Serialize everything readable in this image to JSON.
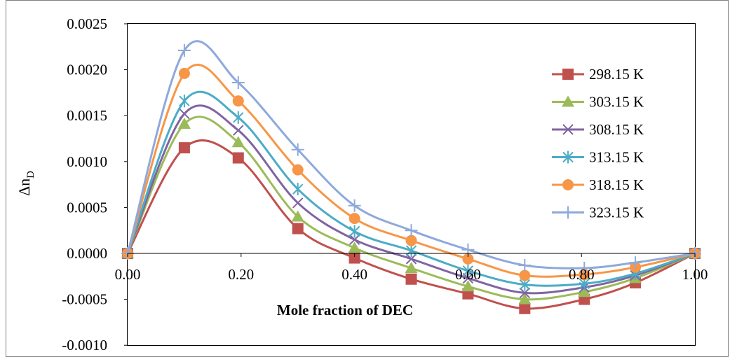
{
  "chart_data": {
    "type": "line",
    "title": "",
    "xlabel": "Mole fraction of DEC",
    "ylabel": {
      "main": "Δn",
      "sub": "D"
    },
    "xlim": [
      0,
      1
    ],
    "ylim": [
      -0.001,
      0.0025
    ],
    "x_ticks": [
      "0.00",
      "0.20",
      "0.40",
      "0.60",
      "0.80",
      "1.00"
    ],
    "y_ticks": [
      "0.0025",
      "0.0020",
      "0.0015",
      "0.0010",
      "0.0005",
      "0.0000",
      "-0.0005",
      "-0.0010"
    ],
    "grid": false,
    "legend_position": "right",
    "x": [
      0.0,
      0.1,
      0.195,
      0.3,
      0.4,
      0.5,
      0.6,
      0.7,
      0.805,
      0.895,
      1.0
    ],
    "series": [
      {
        "name": "298.15 K",
        "color": "#C0504D",
        "marker": "square",
        "values": [
          0.0,
          0.00115,
          0.00104,
          0.00027,
          -5e-05,
          -0.00028,
          -0.00044,
          -0.0006,
          -0.0005,
          -0.00032,
          0.0
        ]
      },
      {
        "name": "303.15 K",
        "color": "#9BBB59",
        "marker": "triangle",
        "values": [
          0.0,
          0.00141,
          0.00121,
          0.0004,
          6e-05,
          -0.00016,
          -0.00036,
          -0.0005,
          -0.00042,
          -0.00027,
          0.0
        ]
      },
      {
        "name": "308.15 K",
        "color": "#8064A2",
        "marker": "x",
        "values": [
          0.0,
          0.00152,
          0.00134,
          0.00055,
          0.00015,
          -6e-05,
          -0.00027,
          -0.00043,
          -0.00037,
          -0.00024,
          0.0
        ]
      },
      {
        "name": "313.15 K",
        "color": "#4BACC6",
        "marker": "asterisk",
        "values": [
          0.0,
          0.00166,
          0.00148,
          0.0007,
          0.00024,
          3e-05,
          -0.00019,
          -0.00034,
          -0.00033,
          -0.00022,
          0.0
        ]
      },
      {
        "name": "318.15 K",
        "color": "#F79646",
        "marker": "circle",
        "values": [
          0.0,
          0.00196,
          0.00166,
          0.00091,
          0.00038,
          0.00014,
          -6e-05,
          -0.00024,
          -0.00023,
          -0.00015,
          0.0
        ]
      },
      {
        "name": "323.15 K",
        "color": "#8EA9DB",
        "marker": "plus",
        "values": [
          0.0,
          0.00221,
          0.00186,
          0.00113,
          0.00052,
          0.00025,
          4e-05,
          -0.00013,
          -0.00016,
          -0.0001,
          0.0
        ]
      }
    ]
  }
}
